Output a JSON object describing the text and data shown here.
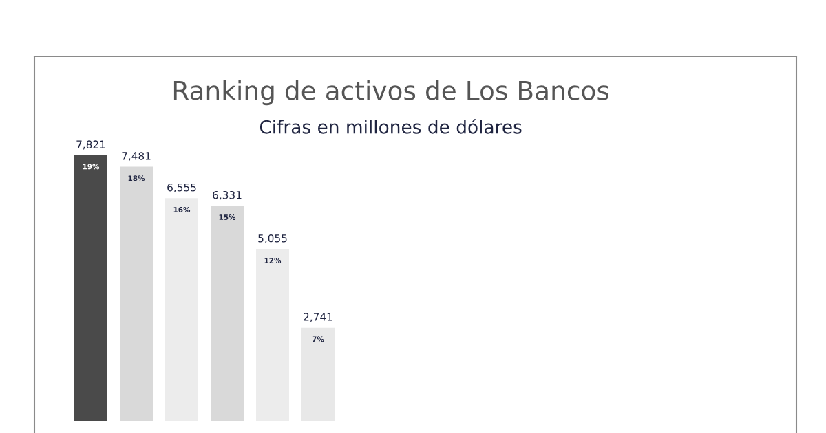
{
  "chart_data": {
    "type": "bar",
    "title": "Ranking de activos de Los Bancos",
    "subtitle": "Cifras en millones de dólares",
    "categories": [
      null,
      null,
      null,
      null,
      null,
      null
    ],
    "values": [
      7821,
      7481,
      6555,
      6331,
      5055,
      2741
    ],
    "colors": [
      "#4a4a4a",
      "#d9d9d9",
      "#ececec",
      "#d9d9d9",
      "#ececec",
      "#e8e8e8"
    ],
    "value_labels": [
      "7,821",
      "7,481",
      "6,555",
      "6,331",
      "5,055",
      "2,741"
    ],
    "annotations": [
      "19%",
      "18%",
      "16%",
      "15%",
      "12%",
      "7%"
    ],
    "grid": false,
    "legend": false
  }
}
